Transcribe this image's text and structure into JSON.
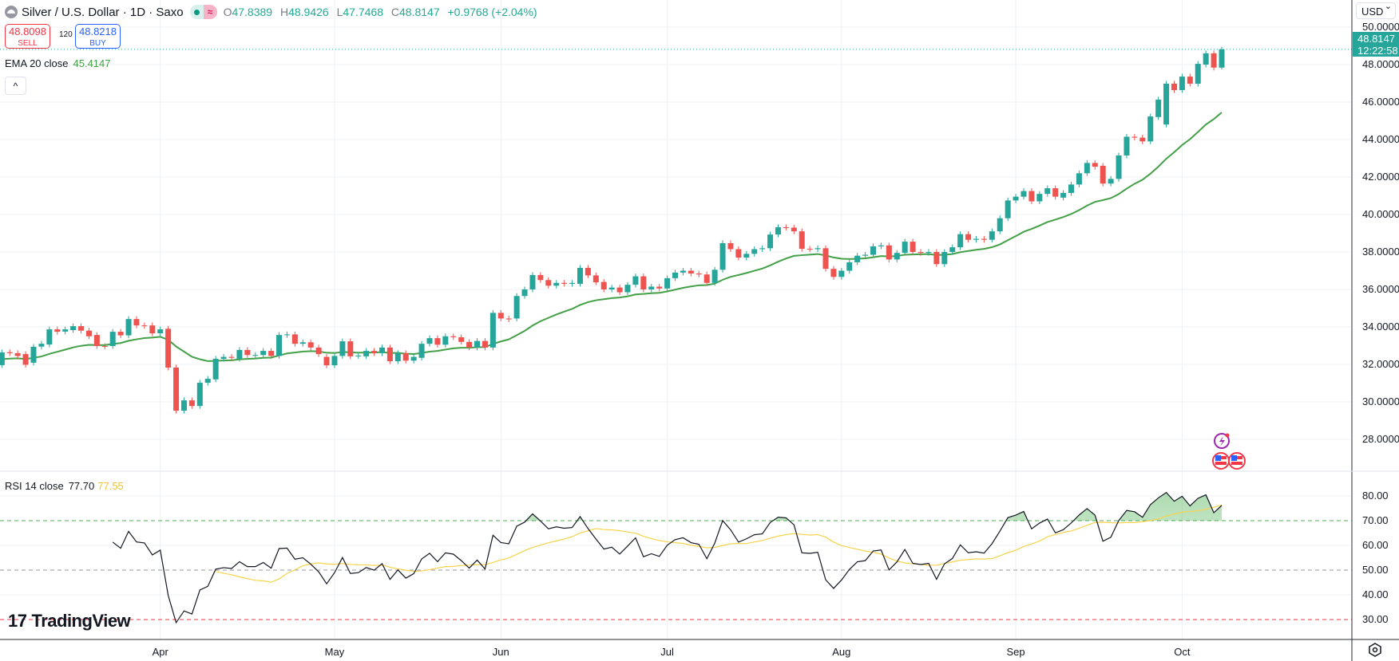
{
  "header": {
    "symbol": "Silver / U.S. Dollar · 1D · Saxo",
    "ohlc": {
      "o_label": "O",
      "o": "47.8389",
      "h_label": "H",
      "h": "48.9426",
      "l_label": "L",
      "l": "47.7468",
      "c_label": "C",
      "c": "48.8147",
      "change": "+0.9768 (+2.04%)"
    }
  },
  "trade": {
    "sell_price": "48.8098",
    "sell_label": "SELL",
    "spread": "120",
    "buy_price": "48.8218",
    "buy_label": "BUY"
  },
  "ema_legend": {
    "label": "EMA 20 close",
    "value": "45.4147"
  },
  "rsi_legend": {
    "label": "RSI 14 close",
    "value": "77.70",
    "ma_value": "77.55"
  },
  "currency": "USD",
  "last_price": {
    "price": "48.8147",
    "countdown": "12:22:58"
  },
  "brand": "TradingView",
  "icons": {
    "symbol": "silver-icon",
    "market_open": "dot-icon",
    "delayed": "wave-icon",
    "collapse": "chevron-up-icon",
    "event": "lightning-icon",
    "flags": "us-flag-icon",
    "settings": "gear-icon"
  },
  "colors": {
    "up": "#26a69a",
    "down": "#ef5350",
    "ema": "#43a047",
    "rsi": "#131722",
    "rsi_ma": "#f7d34b",
    "overbought": "#4caf50",
    "mid": "#9598a1",
    "oversold": "#f23645"
  },
  "chart_data": {
    "type": "candlestick",
    "price_axis": {
      "ticks": [
        "28.0000",
        "30.0000",
        "32.0000",
        "34.0000",
        "36.0000",
        "38.0000",
        "40.0000",
        "42.0000",
        "44.0000",
        "46.0000",
        "48.0000",
        "50.0000"
      ],
      "range": [
        27,
        51.5
      ]
    },
    "time_axis": {
      "ticks": [
        "Apr",
        "May",
        "Jun",
        "Jul",
        "Aug",
        "Sep",
        "Oct"
      ],
      "tick_bar_index": [
        20,
        42,
        63,
        84,
        106,
        128,
        149
      ]
    },
    "candles_open_close": [
      [
        31.96,
        32.64
      ],
      [
        32.65,
        32.6
      ],
      [
        32.6,
        32.45
      ],
      [
        32.55,
        31.98
      ],
      [
        32.09,
        32.94
      ],
      [
        32.95,
        33.1
      ],
      [
        33.06,
        33.87
      ],
      [
        33.87,
        33.74
      ],
      [
        33.75,
        33.87
      ],
      [
        33.83,
        34.04
      ],
      [
        34.04,
        33.8
      ],
      [
        33.8,
        33.5
      ],
      [
        33.57,
        32.98
      ],
      [
        32.98,
        32.95
      ],
      [
        32.98,
        33.74
      ],
      [
        33.74,
        33.55
      ],
      [
        33.55,
        34.42
      ],
      [
        34.42,
        34.08
      ],
      [
        34.08,
        34.05
      ],
      [
        34.08,
        33.66
      ],
      [
        33.66,
        33.87
      ],
      [
        33.9,
        31.83
      ],
      [
        31.83,
        29.53
      ],
      [
        29.53,
        30.08
      ],
      [
        30.08,
        29.78
      ],
      [
        29.78,
        31.02
      ],
      [
        31.02,
        31.23
      ],
      [
        31.2,
        32.3
      ],
      [
        32.3,
        32.4
      ],
      [
        32.4,
        32.35
      ],
      [
        32.3,
        32.77
      ],
      [
        32.77,
        32.5
      ],
      [
        32.5,
        32.5
      ],
      [
        32.5,
        32.72
      ],
      [
        32.72,
        32.45
      ],
      [
        32.45,
        33.57
      ],
      [
        33.57,
        33.6
      ],
      [
        33.6,
        33.1
      ],
      [
        33.1,
        33.18
      ],
      [
        33.18,
        32.9
      ],
      [
        32.9,
        32.55
      ],
      [
        32.4,
        31.95
      ],
      [
        31.95,
        32.45
      ],
      [
        32.45,
        33.23
      ],
      [
        33.23,
        32.43
      ],
      [
        32.45,
        32.47
      ],
      [
        32.43,
        32.72
      ],
      [
        32.72,
        32.6
      ],
      [
        32.6,
        32.9
      ],
      [
        32.9,
        32.17
      ],
      [
        32.17,
        32.6
      ],
      [
        32.6,
        32.2
      ],
      [
        32.2,
        32.4
      ],
      [
        32.35,
        33.1
      ],
      [
        33.1,
        33.4
      ],
      [
        33.4,
        33.05
      ],
      [
        33.05,
        33.5
      ],
      [
        33.5,
        33.45
      ],
      [
        33.45,
        33.2
      ],
      [
        33.2,
        32.9
      ],
      [
        32.9,
        33.25
      ],
      [
        33.25,
        32.9
      ],
      [
        32.9,
        34.75
      ],
      [
        34.75,
        34.45
      ],
      [
        34.45,
        34.4
      ],
      [
        34.45,
        35.65
      ],
      [
        35.65,
        36.0
      ],
      [
        36.0,
        36.77
      ],
      [
        36.77,
        36.5
      ],
      [
        36.5,
        36.2
      ],
      [
        36.2,
        36.35
      ],
      [
        36.35,
        36.3
      ],
      [
        36.3,
        36.35
      ],
      [
        36.3,
        37.15
      ],
      [
        37.15,
        36.75
      ],
      [
        36.75,
        36.38
      ],
      [
        36.4,
        36.0
      ],
      [
        36.0,
        36.1
      ],
      [
        36.1,
        35.85
      ],
      [
        35.85,
        36.25
      ],
      [
        36.25,
        36.7
      ],
      [
        36.7,
        36.0
      ],
      [
        36.0,
        36.15
      ],
      [
        36.15,
        36.05
      ],
      [
        36.05,
        36.6
      ],
      [
        36.6,
        36.9
      ],
      [
        36.9,
        37.0
      ],
      [
        37.0,
        36.85
      ],
      [
        36.85,
        36.8
      ],
      [
        36.8,
        36.35
      ],
      [
        36.35,
        37.05
      ],
      [
        37.05,
        38.47
      ],
      [
        38.47,
        38.15
      ],
      [
        38.15,
        37.7
      ],
      [
        37.7,
        37.9
      ],
      [
        37.9,
        38.15
      ],
      [
        38.15,
        38.2
      ],
      [
        38.2,
        38.93
      ],
      [
        38.93,
        39.32
      ],
      [
        39.32,
        39.3
      ],
      [
        39.3,
        39.1
      ],
      [
        39.1,
        38.17
      ],
      [
        38.17,
        38.15
      ],
      [
        38.15,
        38.2
      ],
      [
        38.2,
        37.1
      ],
      [
        37.1,
        36.67
      ],
      [
        36.67,
        37.0
      ],
      [
        37.0,
        37.45
      ],
      [
        37.45,
        37.8
      ],
      [
        37.8,
        37.85
      ],
      [
        37.85,
        38.3
      ],
      [
        38.3,
        38.35
      ],
      [
        38.35,
        37.6
      ],
      [
        37.6,
        37.95
      ],
      [
        37.95,
        38.55
      ],
      [
        38.55,
        38.0
      ],
      [
        38.0,
        37.95
      ],
      [
        37.95,
        38.0
      ],
      [
        38.0,
        37.35
      ],
      [
        37.35,
        38.0
      ],
      [
        38.0,
        38.25
      ],
      [
        38.25,
        38.95
      ],
      [
        38.95,
        38.65
      ],
      [
        38.65,
        38.7
      ],
      [
        38.7,
        38.65
      ],
      [
        38.65,
        39.1
      ],
      [
        39.1,
        39.8
      ],
      [
        39.8,
        40.75
      ],
      [
        40.75,
        40.95
      ],
      [
        40.95,
        41.25
      ],
      [
        41.25,
        40.7
      ],
      [
        40.7,
        41.1
      ],
      [
        41.1,
        41.4
      ],
      [
        41.4,
        40.95
      ],
      [
        40.9,
        41.15
      ],
      [
        41.15,
        41.6
      ],
      [
        41.6,
        42.2
      ],
      [
        42.2,
        42.75
      ],
      [
        42.75,
        42.55
      ],
      [
        42.6,
        41.65
      ],
      [
        41.65,
        41.9
      ],
      [
        41.9,
        43.15
      ],
      [
        43.15,
        44.15
      ],
      [
        44.15,
        44.1
      ],
      [
        44.1,
        43.9
      ],
      [
        43.9,
        45.23
      ],
      [
        45.2,
        46.13
      ],
      [
        44.8,
        46.98
      ],
      [
        46.98,
        46.64
      ],
      [
        46.64,
        47.36
      ],
      [
        47.36,
        46.98
      ],
      [
        46.98,
        48.04
      ],
      [
        48.0,
        48.6
      ],
      [
        48.6,
        47.84
      ],
      [
        47.8389,
        48.8147
      ]
    ],
    "last_candle": {
      "open": 47.8389,
      "high": 48.9426,
      "low": 47.7468,
      "close": 48.8147
    },
    "indicators": {
      "ema_period": 20,
      "rsi_period": 14,
      "rsi_ma_period": 14
    },
    "rsi_axis": {
      "ticks": [
        "30.00",
        "40.00",
        "50.00",
        "60.00",
        "70.00",
        "80.00"
      ],
      "levels": {
        "overbought": 70,
        "middle": 50,
        "oversold": 30
      }
    },
    "grid": true
  }
}
